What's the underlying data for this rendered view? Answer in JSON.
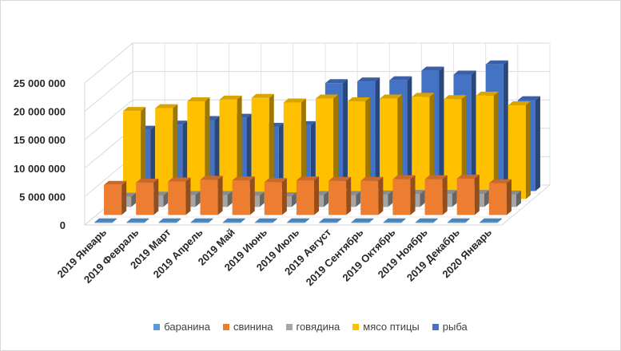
{
  "chart_data": {
    "type": "bar",
    "title": "",
    "xlabel": "",
    "ylabel": "",
    "ylim": [
      0,
      25000000
    ],
    "ytick_labels": [
      "0",
      "5 000 000",
      "10 000 000",
      "15 000 000",
      "20 000 000",
      "25 000 000"
    ],
    "ytick_values": [
      0,
      5000000,
      10000000,
      15000000,
      20000000,
      25000000
    ],
    "categories": [
      "2019 Январь",
      "2019 Февраль",
      "2019 Март",
      "2019 Апрель",
      "2019 Май",
      "2019 Июнь",
      "2019 Июль",
      "2019 Август",
      "2019 Сентябрь",
      "2019 Октябрь",
      "2019 Ноябрь",
      "2019 Декабрь",
      "2020 Январь"
    ],
    "series": [
      {
        "name": "баранина",
        "color": "#5b9bd5",
        "values": [
          100000,
          100000,
          100000,
          100000,
          100000,
          100000,
          100000,
          100000,
          100000,
          100000,
          100000,
          100000,
          100000
        ]
      },
      {
        "name": "свинина",
        "color": "#ed7d31",
        "values": [
          5300000,
          5700000,
          5900000,
          6200000,
          6100000,
          5800000,
          6100000,
          6000000,
          6000000,
          6300000,
          6300000,
          6400000,
          5600000
        ]
      },
      {
        "name": "говядина",
        "color": "#a5a5a5",
        "values": [
          1800000,
          2000000,
          2100000,
          2100000,
          2000000,
          1900000,
          2100000,
          2100000,
          2200000,
          2300000,
          2300000,
          2300000,
          2200000
        ]
      },
      {
        "name": "мясо птицы",
        "color": "#ffc000",
        "values": [
          15500000,
          16000000,
          17200000,
          17500000,
          17800000,
          17000000,
          17700000,
          17200000,
          17700000,
          18000000,
          17600000,
          18200000,
          16500000
        ]
      },
      {
        "name": "рыба",
        "color": "#4472c4",
        "values": [
          10800000,
          11700000,
          12500000,
          12900000,
          11300000,
          11600000,
          19000000,
          19300000,
          19500000,
          21200000,
          20500000,
          22300000,
          16000000
        ]
      }
    ],
    "legend_position": "bottom",
    "grid": true
  },
  "legend": {
    "items": [
      {
        "label": "баранина",
        "color": "#5b9bd5"
      },
      {
        "label": "свинина",
        "color": "#ed7d31"
      },
      {
        "label": "говядина",
        "color": "#a5a5a5"
      },
      {
        "label": "мясо птицы",
        "color": "#ffc000"
      },
      {
        "label": "рыба",
        "color": "#4472c4"
      }
    ]
  }
}
